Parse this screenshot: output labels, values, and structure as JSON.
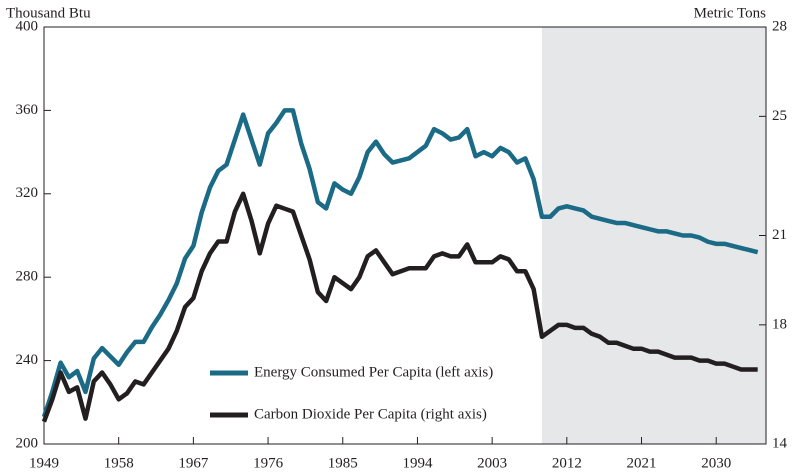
{
  "chart_data": {
    "type": "line",
    "y_label": "Thousand Btu",
    "y2_label": "Metric Tons",
    "x": [
      1949,
      1950,
      1951,
      1952,
      1953,
      1954,
      1955,
      1956,
      1957,
      1958,
      1959,
      1960,
      1961,
      1962,
      1963,
      1964,
      1965,
      1966,
      1967,
      1968,
      1969,
      1970,
      1971,
      1972,
      1973,
      1974,
      1975,
      1976,
      1977,
      1978,
      1979,
      1980,
      1981,
      1982,
      1983,
      1984,
      1985,
      1986,
      1987,
      1988,
      1989,
      1990,
      1991,
      1992,
      1993,
      1994,
      1995,
      1996,
      1997,
      1998,
      1999,
      2000,
      2001,
      2002,
      2003,
      2004,
      2005,
      2006,
      2007,
      2008,
      2009,
      2010,
      2011,
      2012,
      2013,
      2014,
      2015,
      2016,
      2017,
      2018,
      2019,
      2020,
      2021,
      2022,
      2023,
      2024,
      2025,
      2026,
      2027,
      2028,
      2029,
      2030,
      2031,
      2032,
      2033,
      2034,
      2035
    ],
    "series": [
      {
        "name": "Energy Consumed Per Capita (left axis)",
        "color": "#1b6a86",
        "values": [
          213,
          225,
          239,
          232,
          235,
          225,
          241,
          246,
          242,
          238,
          244,
          249,
          249,
          256,
          262,
          269,
          277,
          289,
          295,
          311,
          323,
          331,
          334,
          346,
          358,
          346,
          334,
          349,
          354,
          360,
          360,
          344,
          332,
          316,
          313,
          325,
          322,
          320,
          328,
          340,
          345,
          339,
          335,
          336,
          337,
          340,
          343,
          351,
          349,
          346,
          347,
          351,
          338,
          340,
          338,
          342,
          340,
          335,
          337,
          327,
          309,
          309,
          313,
          314,
          313,
          312,
          309,
          308,
          307,
          306,
          306,
          305,
          304,
          303,
          302,
          302,
          301,
          300,
          300,
          299,
          297,
          296,
          296,
          295,
          294,
          293,
          292
        ]
      },
      {
        "name": "Carbon Dioxide Per Capita (right axis)",
        "color": "#231f20",
        "axis": "y2",
        "values": [
          14.75,
          15.5,
          16.4,
          15.75,
          15.9,
          14.85,
          16.1,
          16.4,
          16,
          15.5,
          15.7,
          16.1,
          16,
          16.4,
          16.8,
          17.2,
          17.8,
          18.6,
          18.9,
          19.8,
          20.4,
          20.8,
          20.8,
          21.8,
          22.4,
          21.5,
          20.4,
          21.4,
          22,
          21.9,
          21.8,
          21,
          20.2,
          19.1,
          18.8,
          19.6,
          19.4,
          19.2,
          19.6,
          20.3,
          20.5,
          20.1,
          19.7,
          19.8,
          19.9,
          19.9,
          19.9,
          20.3,
          20.4,
          20.3,
          20.3,
          20.7,
          20.1,
          20.1,
          20.1,
          20.3,
          20.2,
          19.8,
          19.8,
          19.2,
          17.6,
          17.8,
          18,
          18,
          17.9,
          17.9,
          17.7,
          17.6,
          17.4,
          17.4,
          17.3,
          17.2,
          17.2,
          17.1,
          17.1,
          17,
          16.9,
          16.9,
          16.9,
          16.8,
          16.8,
          16.7,
          16.7,
          16.6,
          16.5,
          16.5,
          16.5
        ]
      }
    ],
    "xlim": [
      1949,
      2036
    ],
    "xticks": [
      1949,
      1958,
      1967,
      1976,
      1985,
      1994,
      2003,
      2012,
      2021,
      2030
    ],
    "ylim": [
      200,
      400
    ],
    "yticks": [
      200,
      240,
      280,
      320,
      360,
      400
    ],
    "y2lim": [
      14,
      28
    ],
    "y2ticks": [
      14,
      18,
      21,
      25,
      28
    ],
    "shaded_xrange": [
      2009,
      2036
    ],
    "shade_color": "#e6e7e9"
  }
}
